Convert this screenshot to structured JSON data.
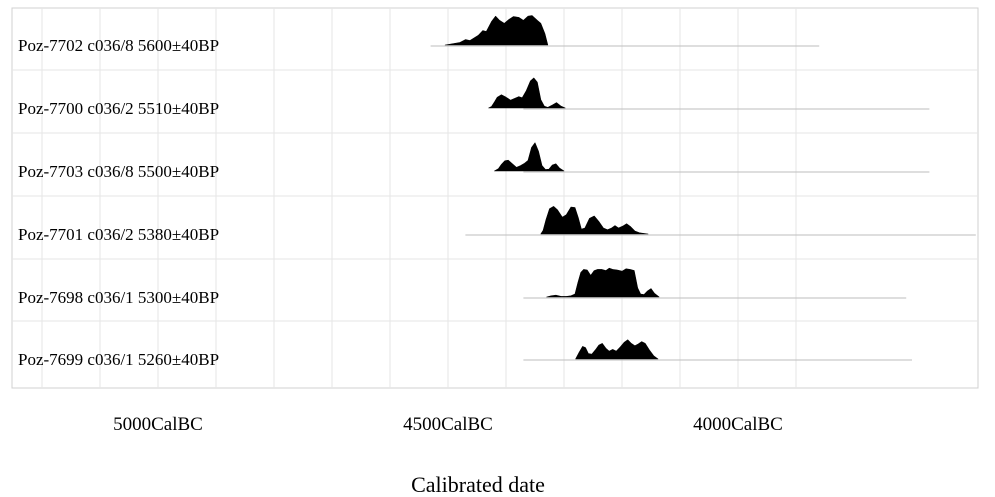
{
  "chart_data": {
    "type": "area",
    "xlabel": "Calibrated date",
    "x_axis": {
      "unit": "CalBC",
      "reversed": true,
      "range_calbc": [
        5200,
        3810
      ],
      "major_ticks": [
        5000,
        4500,
        4000
      ],
      "tick_labels": [
        "5000CalBC",
        "4500CalBC",
        "4000CalBC"
      ],
      "minor_tick_step": 100
    },
    "grid": true,
    "samples": [
      {
        "name": "Poz-7702 c036/8",
        "bp": "5600±40BP",
        "label": "Poz-7702 c036/8  5600±40BP",
        "range_line": [
          4530,
          3860
        ],
        "density": [
          [
            4505,
            0.0
          ],
          [
            4480,
            0.08
          ],
          [
            4470,
            0.18
          ],
          [
            4462,
            0.15
          ],
          [
            4448,
            0.32
          ],
          [
            4440,
            0.48
          ],
          [
            4434,
            0.45
          ],
          [
            4425,
            0.78
          ],
          [
            4418,
            0.96
          ],
          [
            4411,
            0.82
          ],
          [
            4403,
            0.72
          ],
          [
            4395,
            0.85
          ],
          [
            4387,
            0.95
          ],
          [
            4378,
            0.92
          ],
          [
            4370,
            0.82
          ],
          [
            4362,
            0.96
          ],
          [
            4355,
            0.98
          ],
          [
            4346,
            0.82
          ],
          [
            4340,
            0.72
          ],
          [
            4333,
            0.38
          ],
          [
            4328,
            0.0
          ]
        ]
      },
      {
        "name": "Poz-7700 c036/2",
        "bp": "5510±40BP",
        "label": "Poz-7700 c036/2  5510±40BP",
        "range_line": [
          4370,
          3670
        ],
        "density": [
          [
            4430,
            0.0
          ],
          [
            4425,
            0.05
          ],
          [
            4420,
            0.2
          ],
          [
            4415,
            0.36
          ],
          [
            4408,
            0.44
          ],
          [
            4400,
            0.36
          ],
          [
            4392,
            0.26
          ],
          [
            4385,
            0.32
          ],
          [
            4378,
            0.38
          ],
          [
            4372,
            0.34
          ],
          [
            4365,
            0.58
          ],
          [
            4358,
            0.9
          ],
          [
            4352,
            1.0
          ],
          [
            4346,
            0.86
          ],
          [
            4340,
            0.28
          ],
          [
            4334,
            0.06
          ],
          [
            4328,
            0.02
          ],
          [
            4320,
            0.1
          ],
          [
            4313,
            0.18
          ],
          [
            4305,
            0.06
          ],
          [
            4298,
            0.0
          ]
        ]
      },
      {
        "name": "Poz-7703 c036/8",
        "bp": "5500±40BP",
        "label": "Poz-7703 c036/8  5500±40BP",
        "range_line": [
          4370,
          3670
        ],
        "density": [
          [
            4420,
            0.0
          ],
          [
            4413,
            0.08
          ],
          [
            4408,
            0.22
          ],
          [
            4402,
            0.34
          ],
          [
            4396,
            0.36
          ],
          [
            4389,
            0.24
          ],
          [
            4382,
            0.12
          ],
          [
            4375,
            0.18
          ],
          [
            4368,
            0.26
          ],
          [
            4362,
            0.35
          ],
          [
            4356,
            0.78
          ],
          [
            4350,
            0.94
          ],
          [
            4344,
            0.66
          ],
          [
            4338,
            0.18
          ],
          [
            4332,
            0.05
          ],
          [
            4326,
            0.06
          ],
          [
            4320,
            0.2
          ],
          [
            4314,
            0.24
          ],
          [
            4308,
            0.1
          ],
          [
            4300,
            0.0
          ]
        ]
      },
      {
        "name": "Poz-7701 c036/2",
        "bp": "5380±40BP",
        "label": "Poz-7701 c036/2  5380±40BP",
        "range_line": [
          4470,
          3590
        ],
        "density": [
          [
            4340,
            0.0
          ],
          [
            4336,
            0.12
          ],
          [
            4331,
            0.48
          ],
          [
            4325,
            0.84
          ],
          [
            4318,
            0.92
          ],
          [
            4311,
            0.8
          ],
          [
            4303,
            0.56
          ],
          [
            4296,
            0.64
          ],
          [
            4288,
            0.9
          ],
          [
            4281,
            0.88
          ],
          [
            4275,
            0.52
          ],
          [
            4270,
            0.16
          ],
          [
            4264,
            0.2
          ],
          [
            4256,
            0.52
          ],
          [
            4248,
            0.6
          ],
          [
            4240,
            0.42
          ],
          [
            4232,
            0.2
          ],
          [
            4225,
            0.14
          ],
          [
            4218,
            0.2
          ],
          [
            4212,
            0.28
          ],
          [
            4206,
            0.2
          ],
          [
            4199,
            0.26
          ],
          [
            4192,
            0.34
          ],
          [
            4185,
            0.24
          ],
          [
            4178,
            0.1
          ],
          [
            4170,
            0.04
          ],
          [
            4155,
            0.0
          ]
        ]
      },
      {
        "name": "Poz-7698 c036/1",
        "bp": "5300±40BP",
        "label": "Poz-7698 c036/1  5300±40BP",
        "range_line": [
          4370,
          3710
        ],
        "density": [
          [
            4330,
            0.0
          ],
          [
            4322,
            0.04
          ],
          [
            4314,
            0.06
          ],
          [
            4305,
            0.02
          ],
          [
            4296,
            0.02
          ],
          [
            4288,
            0.04
          ],
          [
            4281,
            0.1
          ],
          [
            4276,
            0.48
          ],
          [
            4271,
            0.82
          ],
          [
            4266,
            0.92
          ],
          [
            4260,
            0.9
          ],
          [
            4254,
            0.72
          ],
          [
            4248,
            0.88
          ],
          [
            4242,
            0.92
          ],
          [
            4235,
            0.92
          ],
          [
            4228,
            0.88
          ],
          [
            4222,
            0.96
          ],
          [
            4216,
            0.92
          ],
          [
            4208,
            0.9
          ],
          [
            4200,
            0.86
          ],
          [
            4193,
            0.94
          ],
          [
            4186,
            0.92
          ],
          [
            4179,
            0.88
          ],
          [
            4173,
            0.3
          ],
          [
            4168,
            0.1
          ],
          [
            4162,
            0.08
          ],
          [
            4156,
            0.2
          ],
          [
            4150,
            0.28
          ],
          [
            4144,
            0.12
          ],
          [
            4136,
            0.0
          ]
        ]
      },
      {
        "name": "Poz-7699 c036/1",
        "bp": "5260±40BP",
        "label": "Poz-7699 c036/1  5260±40BP",
        "range_line": [
          4370,
          3700
        ],
        "density": [
          [
            4280,
            0.0
          ],
          [
            4274,
            0.22
          ],
          [
            4268,
            0.42
          ],
          [
            4263,
            0.38
          ],
          [
            4258,
            0.18
          ],
          [
            4252,
            0.16
          ],
          [
            4246,
            0.3
          ],
          [
            4240,
            0.46
          ],
          [
            4234,
            0.52
          ],
          [
            4228,
            0.36
          ],
          [
            4222,
            0.26
          ],
          [
            4216,
            0.32
          ],
          [
            4210,
            0.26
          ],
          [
            4203,
            0.4
          ],
          [
            4196,
            0.56
          ],
          [
            4190,
            0.64
          ],
          [
            4184,
            0.52
          ],
          [
            4178,
            0.44
          ],
          [
            4172,
            0.5
          ],
          [
            4166,
            0.58
          ],
          [
            4160,
            0.52
          ],
          [
            4152,
            0.28
          ],
          [
            4145,
            0.1
          ],
          [
            4138,
            0.0
          ]
        ]
      }
    ]
  }
}
